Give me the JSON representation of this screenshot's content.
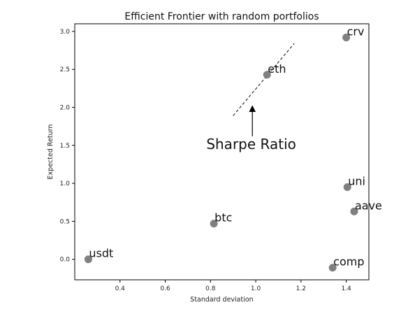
{
  "chart_data": {
    "type": "scatter",
    "title": "Efficient Frontier with random portfolios",
    "xlabel": "Standard deviation",
    "ylabel": "Expected Return",
    "xlim": [
      0.2,
      1.5
    ],
    "ylim": [
      -0.27,
      3.1
    ],
    "x_ticks": [
      0.4,
      0.6,
      0.8,
      1.0,
      1.2,
      1.4
    ],
    "x_tick_labels": [
      "0.4",
      "0.6",
      "0.8",
      "1.0",
      "1.2",
      "1.4"
    ],
    "y_ticks": [
      0.0,
      0.5,
      1.0,
      1.5,
      2.0,
      2.5,
      3.0
    ],
    "y_tick_labels": [
      "0.0",
      "0.5",
      "1.0",
      "1.5",
      "2.0",
      "2.5",
      "3.0"
    ],
    "grid": false,
    "point_color": "#808080",
    "points": [
      {
        "label": "usdt",
        "x": 0.26,
        "y": 0.0
      },
      {
        "label": "btc",
        "x": 0.815,
        "y": 0.47
      },
      {
        "label": "eth",
        "x": 1.05,
        "y": 2.43
      },
      {
        "label": "crv",
        "x": 1.4,
        "y": 2.92
      },
      {
        "label": "uni",
        "x": 1.405,
        "y": 0.95
      },
      {
        "label": "aave",
        "x": 1.435,
        "y": 0.63
      },
      {
        "label": "comp",
        "x": 1.34,
        "y": -0.11
      }
    ],
    "sharpe_line": {
      "x": [
        0.9,
        1.17
      ],
      "y": [
        1.89,
        2.84
      ],
      "style": "dashed",
      "color": "#000000"
    },
    "annotation": {
      "text": "Sharpe Ratio",
      "text_x": 0.98,
      "text_y": 1.45,
      "arrow_from": [
        0.985,
        1.62
      ],
      "arrow_to": [
        0.985,
        2.03
      ]
    }
  }
}
